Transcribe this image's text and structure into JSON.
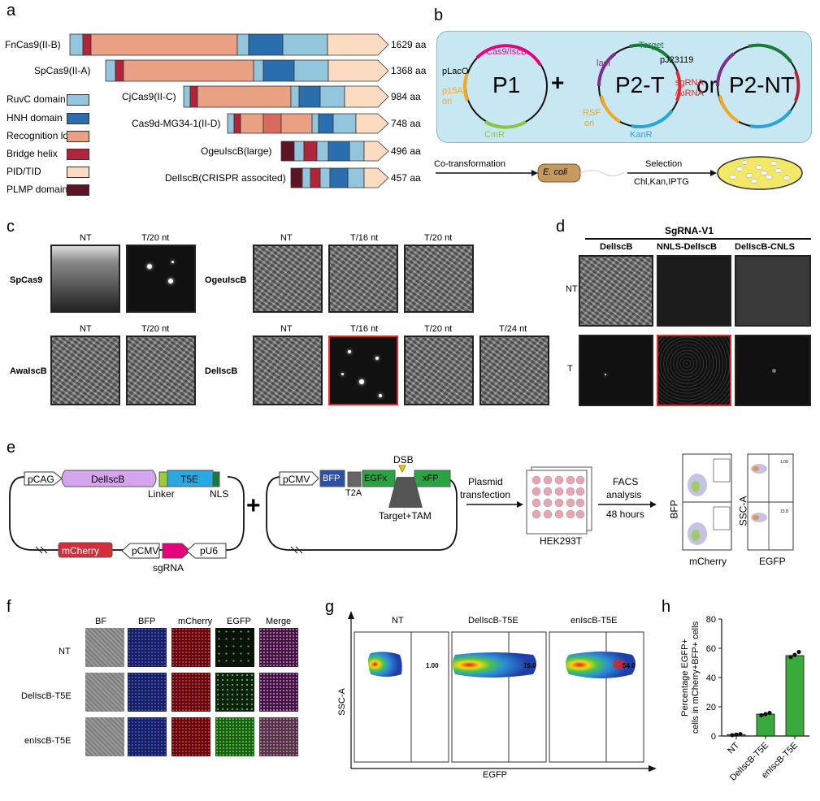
{
  "panels": {
    "a": "a",
    "b": "b",
    "c": "c",
    "d": "d",
    "e": "e",
    "f": "f",
    "g": "g",
    "h": "h"
  },
  "panel_a": {
    "proteins": [
      {
        "name": "FnCas9(II-B)",
        "length": "1629 aa"
      },
      {
        "name": "SpCas9(II-A)",
        "length": "1368 aa"
      },
      {
        "name": "CjCas9(II-C)",
        "length": "984 aa"
      },
      {
        "name": "Cas9d-MG34-1(II-D)",
        "length": "748 aa"
      },
      {
        "name": "OgeuIscB(large)",
        "length": "496 aa"
      },
      {
        "name": "DelIscB(CRISPR associted)",
        "length": "457 aa"
      }
    ],
    "legend": [
      {
        "label": "RuvC domain",
        "color": "#93c6dc"
      },
      {
        "label": "HNH domain",
        "color": "#2a6ead"
      },
      {
        "label": "Recognition lobe",
        "color": "#e9a083"
      },
      {
        "label": "Bridge helix",
        "color": "#b0253a"
      },
      {
        "label": "PID/TID",
        "color": "#fbdcc2"
      },
      {
        "label": "PLMP domain",
        "color": "#5e1424"
      }
    ]
  },
  "panel_b": {
    "p1": "P1",
    "p2t": "P2-T",
    "p2nt": "P2-NT",
    "plus": "+",
    "or": "or",
    "cas9": "Cas9/IscB",
    "placo": "pLacO",
    "p15a": "p15A",
    "ori": "ori",
    "cmr": "CmR",
    "target": "Target",
    "laci": "lacI",
    "pj": "pJ23119",
    "sgrna": "sgRNA",
    "wrna": "/ωRNA",
    "rsf": "RSF",
    "ori2": "ori",
    "kanr": "KanR",
    "cotrans": "Co-transformation",
    "ecoli": "E. coli",
    "selection": "Selection",
    "chl": "Chl,Kan,IPTG"
  },
  "panel_c": {
    "spcas9": "SpCas9",
    "awaiscb": "AwaIscB",
    "ogeuiscb": "OgeuIscB",
    "deliscb": "DelIscB",
    "nt": "NT",
    "t20": "T/20 nt",
    "t16": "T/16 nt",
    "t24": "T/24 nt"
  },
  "panel_d": {
    "header": "SgRNA-V1",
    "col1": "DelIscB",
    "col2": "NNLS-DelIscB",
    "col3": "DelIscB-CNLS",
    "row1": "NT",
    "row2": "T"
  },
  "panel_e": {
    "pcag": "pCAG",
    "deliscb": "DelIscB",
    "t5e": "T5E",
    "linker": "Linker",
    "nls": "NLS",
    "mcherry": "mCherry",
    "pcmv": "pCMV",
    "pu6": "pU6",
    "sgrna": "sgRNA",
    "plus": "+",
    "pcmv2": "pCMV",
    "bfp": "BFP",
    "t2a": "T2A",
    "egfx": "EGFx",
    "xfp": "xFP",
    "dsb": "DSB",
    "target_tam": "Target+TAM",
    "plasmid": "Plasmid",
    "transfection": "transfection",
    "hek": "HEK293T",
    "facs": "FACS",
    "analysis": "analysis",
    "hours": "48 hours",
    "bfp_axis": "BFP",
    "mcherry_axis": "mCherry",
    "ssca_axis": "SSC-A",
    "egfp_axis": "EGFP",
    "gate_a": "1.00",
    "gate_b": "13.8"
  },
  "panel_f": {
    "cols": [
      "BF",
      "BFP",
      "mCherry",
      "EGFP",
      "Merge"
    ],
    "rows": [
      "NT",
      "DelIscB-T5E",
      "enIscB-T5E"
    ]
  },
  "panel_g": {
    "ylabel": "SSC-A",
    "xlabel": "EGFP",
    "plots": [
      {
        "title": "NT",
        "pct": "1.00"
      },
      {
        "title": "DelIscB-T5E",
        "pct": "15.0"
      },
      {
        "title": "enIscB-T5E",
        "pct": "54.0"
      }
    ]
  },
  "chart_data": {
    "type": "bar",
    "categories": [
      "NT",
      "DelIscB-T5E",
      "enIscB-T5E"
    ],
    "values": [
      1,
      15,
      55
    ],
    "points": [
      [
        0.6,
        1.0,
        1.3
      ],
      [
        14.2,
        15.0,
        15.8
      ],
      [
        54.0,
        55.5,
        57.5
      ]
    ],
    "ylabel": "Percentage EGFP+ cells in mCherry+BFP+ cells",
    "ylabel_line1": "Percentage EGFP+",
    "ylabel_line2": "cells in mCherry+BFP+ cells",
    "ylim": [
      0,
      80
    ],
    "yticks": [
      "0",
      "20",
      "40",
      "60",
      "80"
    ],
    "colors": {
      "bar": "#3aab3a"
    }
  }
}
